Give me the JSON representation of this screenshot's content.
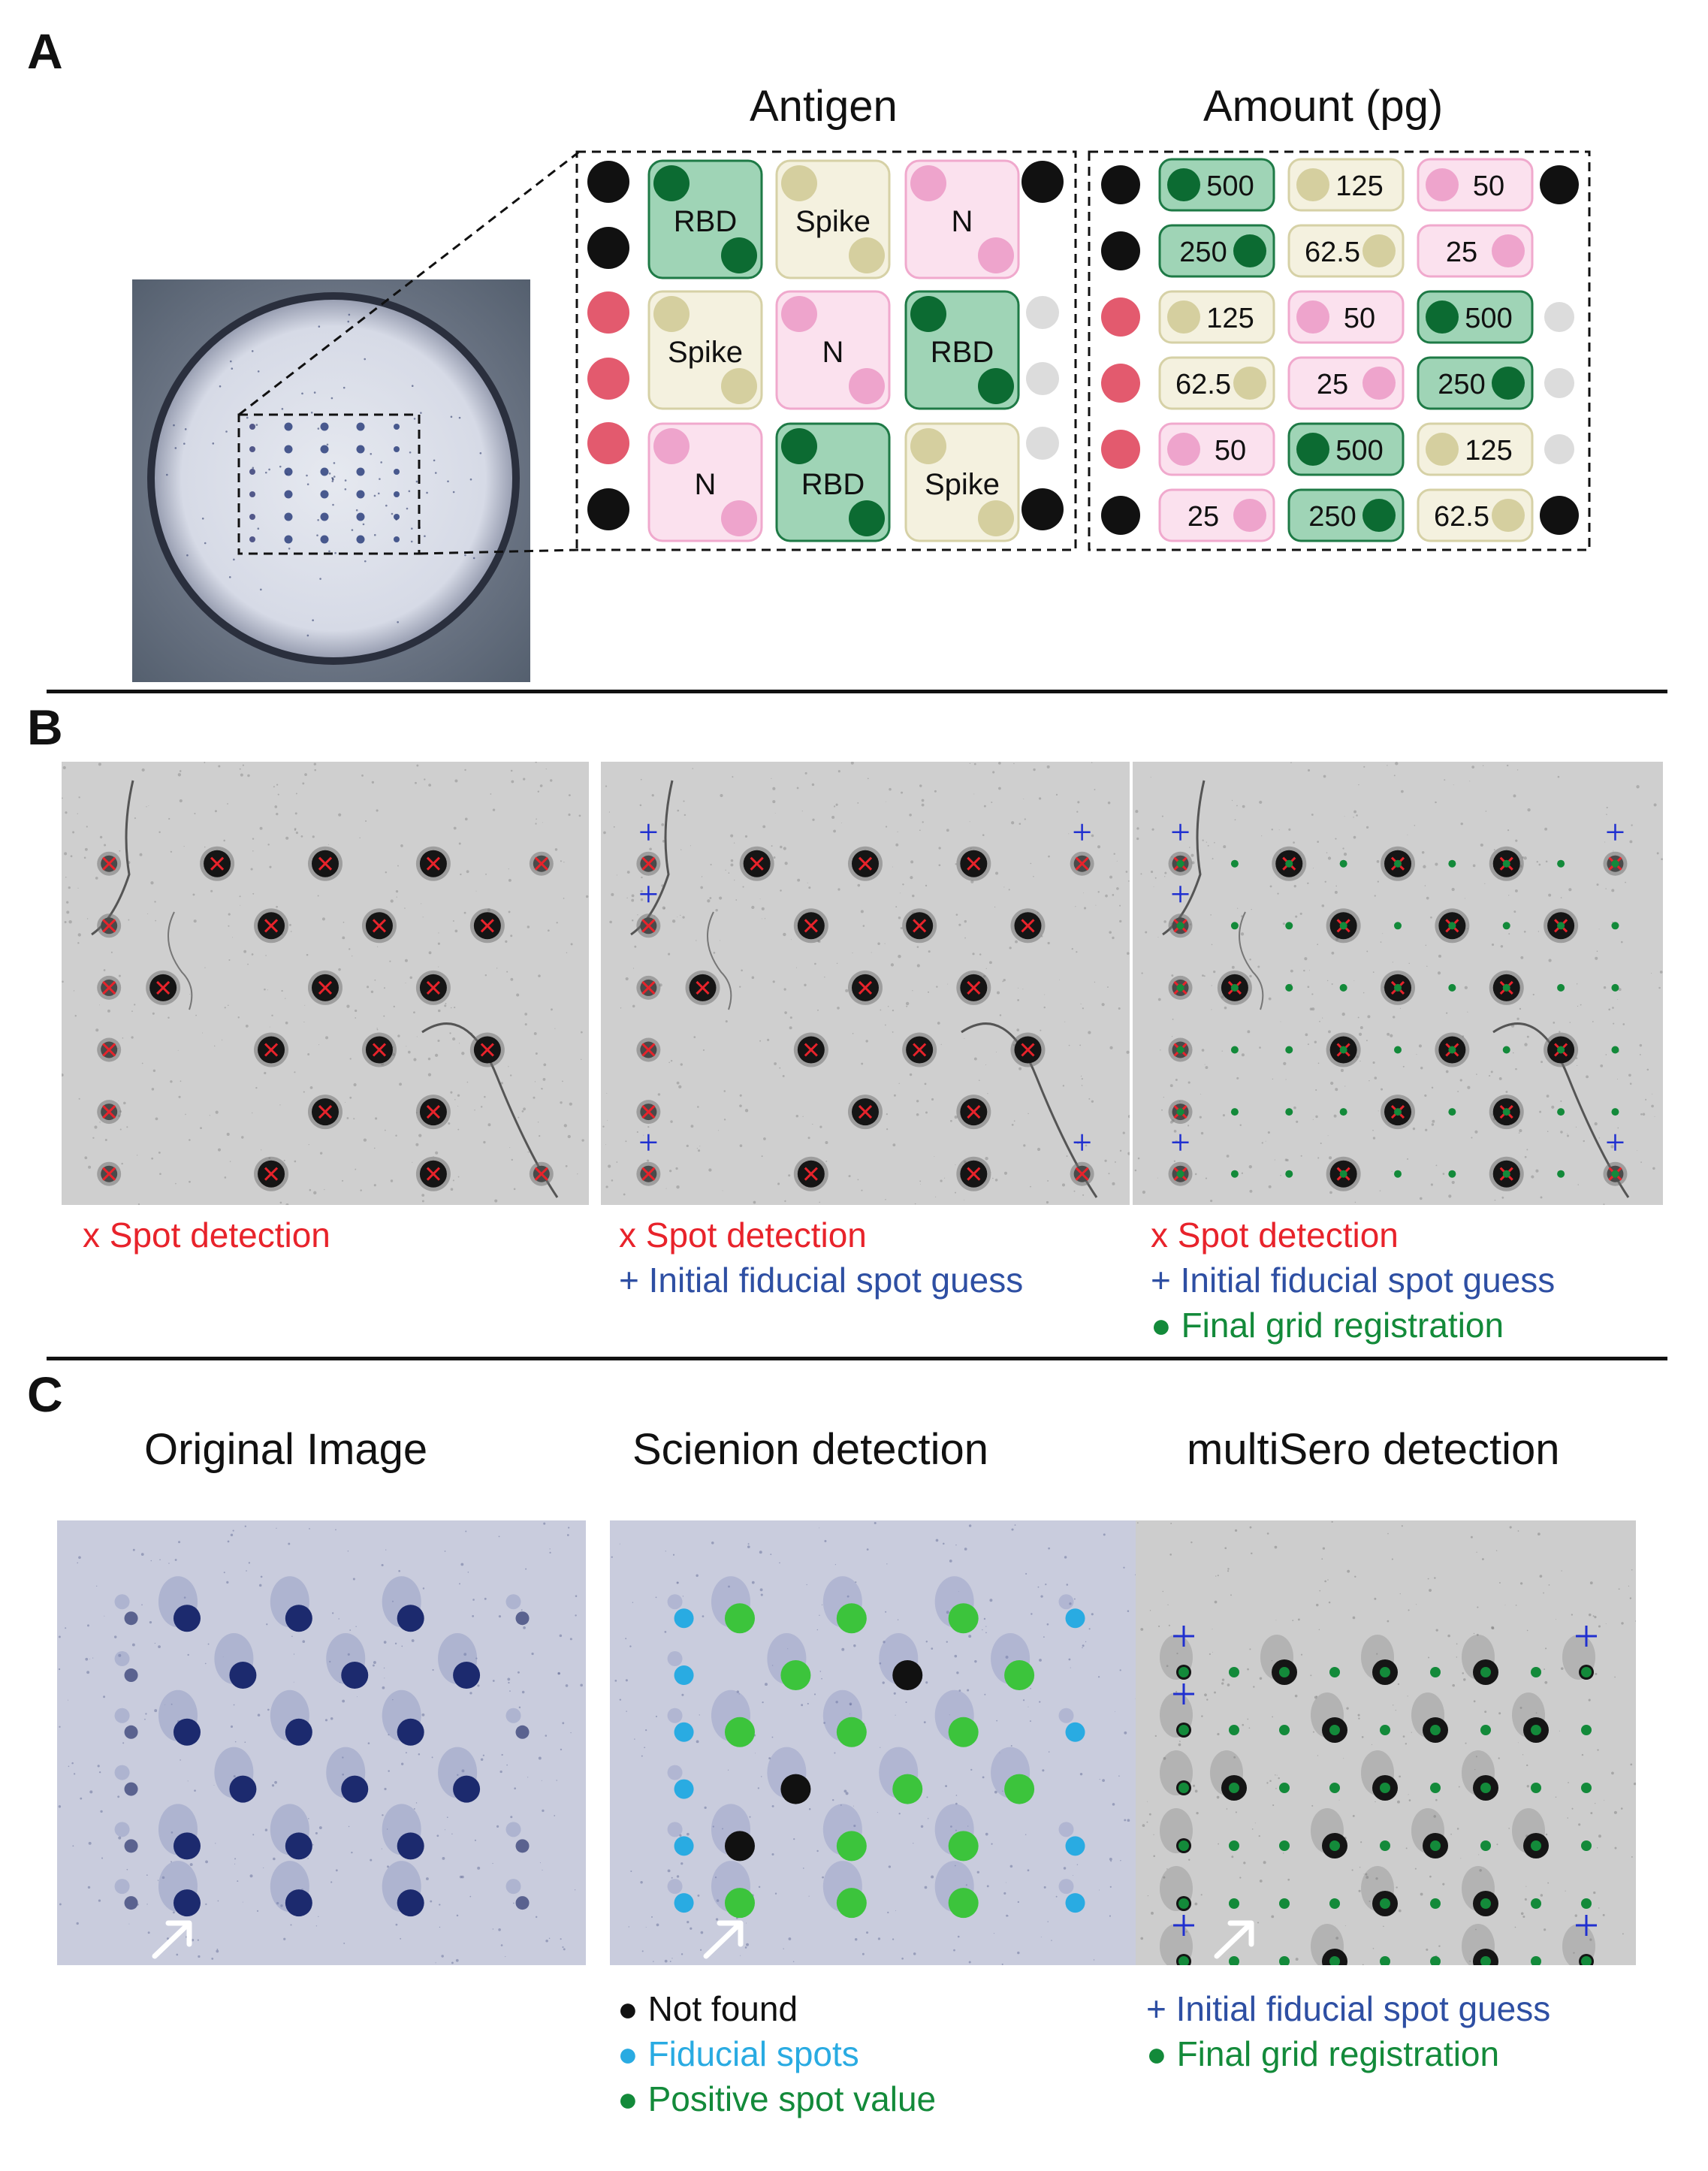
{
  "panels": {
    "A": {
      "label": "A",
      "antigen_title": "Antigen",
      "amount_title": "Amount (pg)",
      "antigen_rows": [
        [
          "RBD",
          "Spike",
          "N"
        ],
        [
          "Spike",
          "N",
          "RBD"
        ],
        [
          "N",
          "RBD",
          "Spike"
        ]
      ],
      "amount_rows": [
        [
          "500",
          "125",
          "50"
        ],
        [
          "250",
          "62.5",
          "25"
        ],
        [
          "125",
          "50",
          "500"
        ],
        [
          "62.5",
          "25",
          "250"
        ],
        [
          "50",
          "500",
          "125"
        ],
        [
          "25",
          "250",
          "62.5"
        ]
      ],
      "colors": {
        "RBD_fill": "#9fd4b6",
        "RBD_border": "#1e7a46",
        "RBD_dot": "#0c6b32",
        "Spike_fill": "#f4f1df",
        "Spike_border": "#d6d1a6",
        "Spike_dot": "#d5cf9f",
        "N_fill": "#fbe1ee",
        "N_border": "#f0a9cd",
        "N_dot": "#eea4cc",
        "fiducial_black": "#111111",
        "fiducial_red": "#e35a6e",
        "empty_grey": "#dcdcdc"
      }
    },
    "B": {
      "label": "B",
      "legends": [
        [
          "x Spot detection"
        ],
        [
          "x Spot detection",
          "+ Initial fiducial spot guess"
        ],
        [
          "x Spot detection",
          "+ Initial fiducial spot guess",
          "● Final grid registration"
        ]
      ]
    },
    "C": {
      "label": "C",
      "titles": [
        "Original Image",
        "Scienion detection",
        "multiSero detection"
      ],
      "scienion_legend": [
        "● Not found",
        "● Fiducial spots",
        "● Positive spot value"
      ],
      "multisero_legend": [
        "+ Initial fiducial spot guess",
        "● Final grid registration"
      ]
    }
  }
}
